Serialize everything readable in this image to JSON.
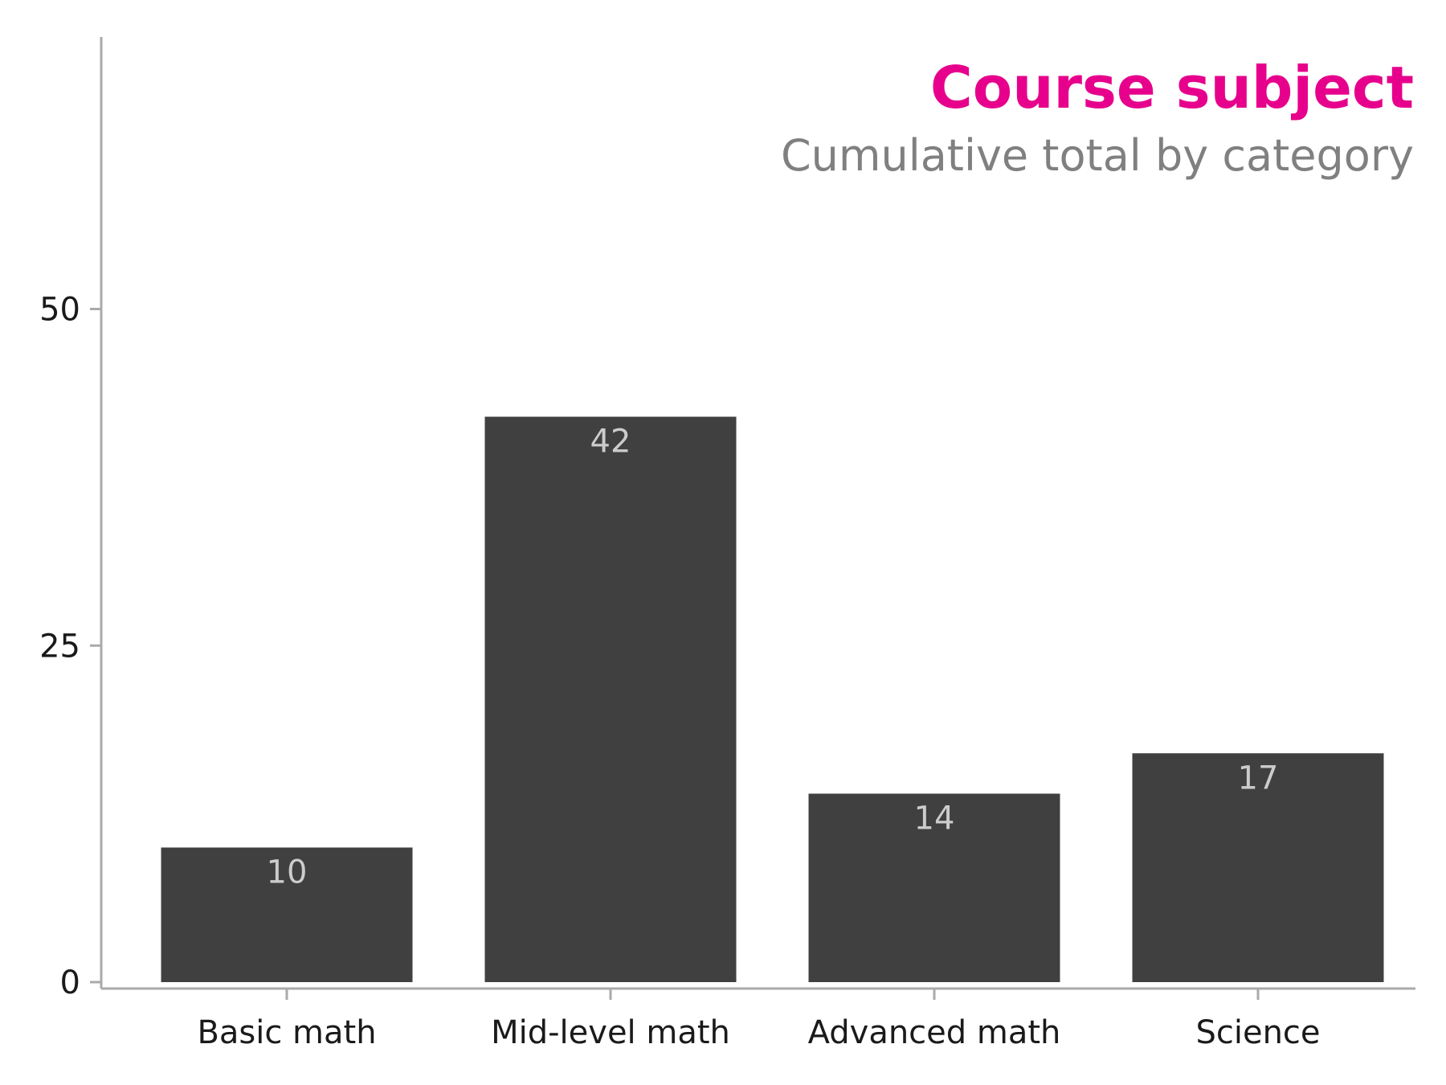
{
  "title": "Course subject",
  "subtitle": "Cumulative total by category",
  "colors": {
    "title": "#e6008c",
    "subtitle": "#808080",
    "bar": "#404040",
    "data_label": "#cccccc",
    "axis": "#aaaaaa"
  },
  "chart_data": {
    "type": "bar",
    "title": "Course subject",
    "subtitle": "Cumulative total by category",
    "categories": [
      "Basic math",
      "Mid-level math",
      "Advanced math",
      "Science"
    ],
    "values": [
      10,
      42,
      14,
      17
    ],
    "data_labels": [
      "10",
      "42",
      "14",
      "17"
    ],
    "xlabel": "",
    "ylabel": "",
    "ylim": [
      0,
      70
    ],
    "yticks": [
      0,
      25,
      50
    ],
    "ytick_labels": [
      "0",
      "25",
      "50"
    ],
    "grid": false,
    "legend": "none"
  }
}
